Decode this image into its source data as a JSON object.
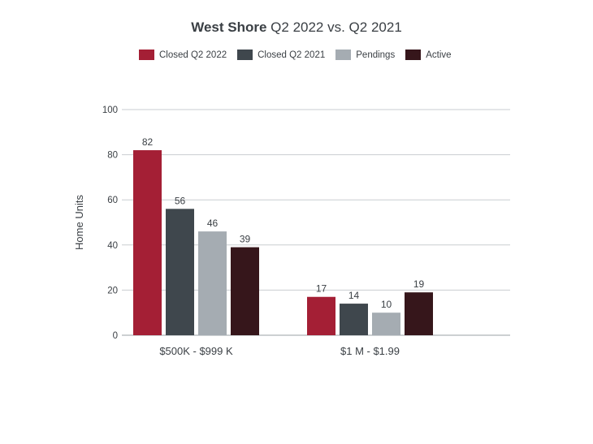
{
  "title_bold": "West Shore",
  "title_rest": "Q2 2022 vs. Q2 2021",
  "chart_data": {
    "type": "bar",
    "title": "West Shore Q2 2022 vs. Q2 2021",
    "xlabel": "",
    "ylabel": "Home Units",
    "ylim": [
      0,
      100
    ],
    "yticks": [
      0,
      20,
      40,
      60,
      80,
      100
    ],
    "categories": [
      "$500K - $999 K",
      "$1 M - $1.99"
    ],
    "legend_position": "top",
    "grid": true,
    "series": [
      {
        "name": "Closed Q2 2022",
        "color": "#a41f35",
        "values": [
          82,
          17
        ]
      },
      {
        "name": "Closed Q2 2021",
        "color": "#3f474d",
        "values": [
          56,
          14
        ]
      },
      {
        "name": "Pendings",
        "color": "#a5acb2",
        "values": [
          46,
          10
        ]
      },
      {
        "name": "Active",
        "color": "#36161b",
        "values": [
          39,
          19
        ]
      }
    ]
  }
}
